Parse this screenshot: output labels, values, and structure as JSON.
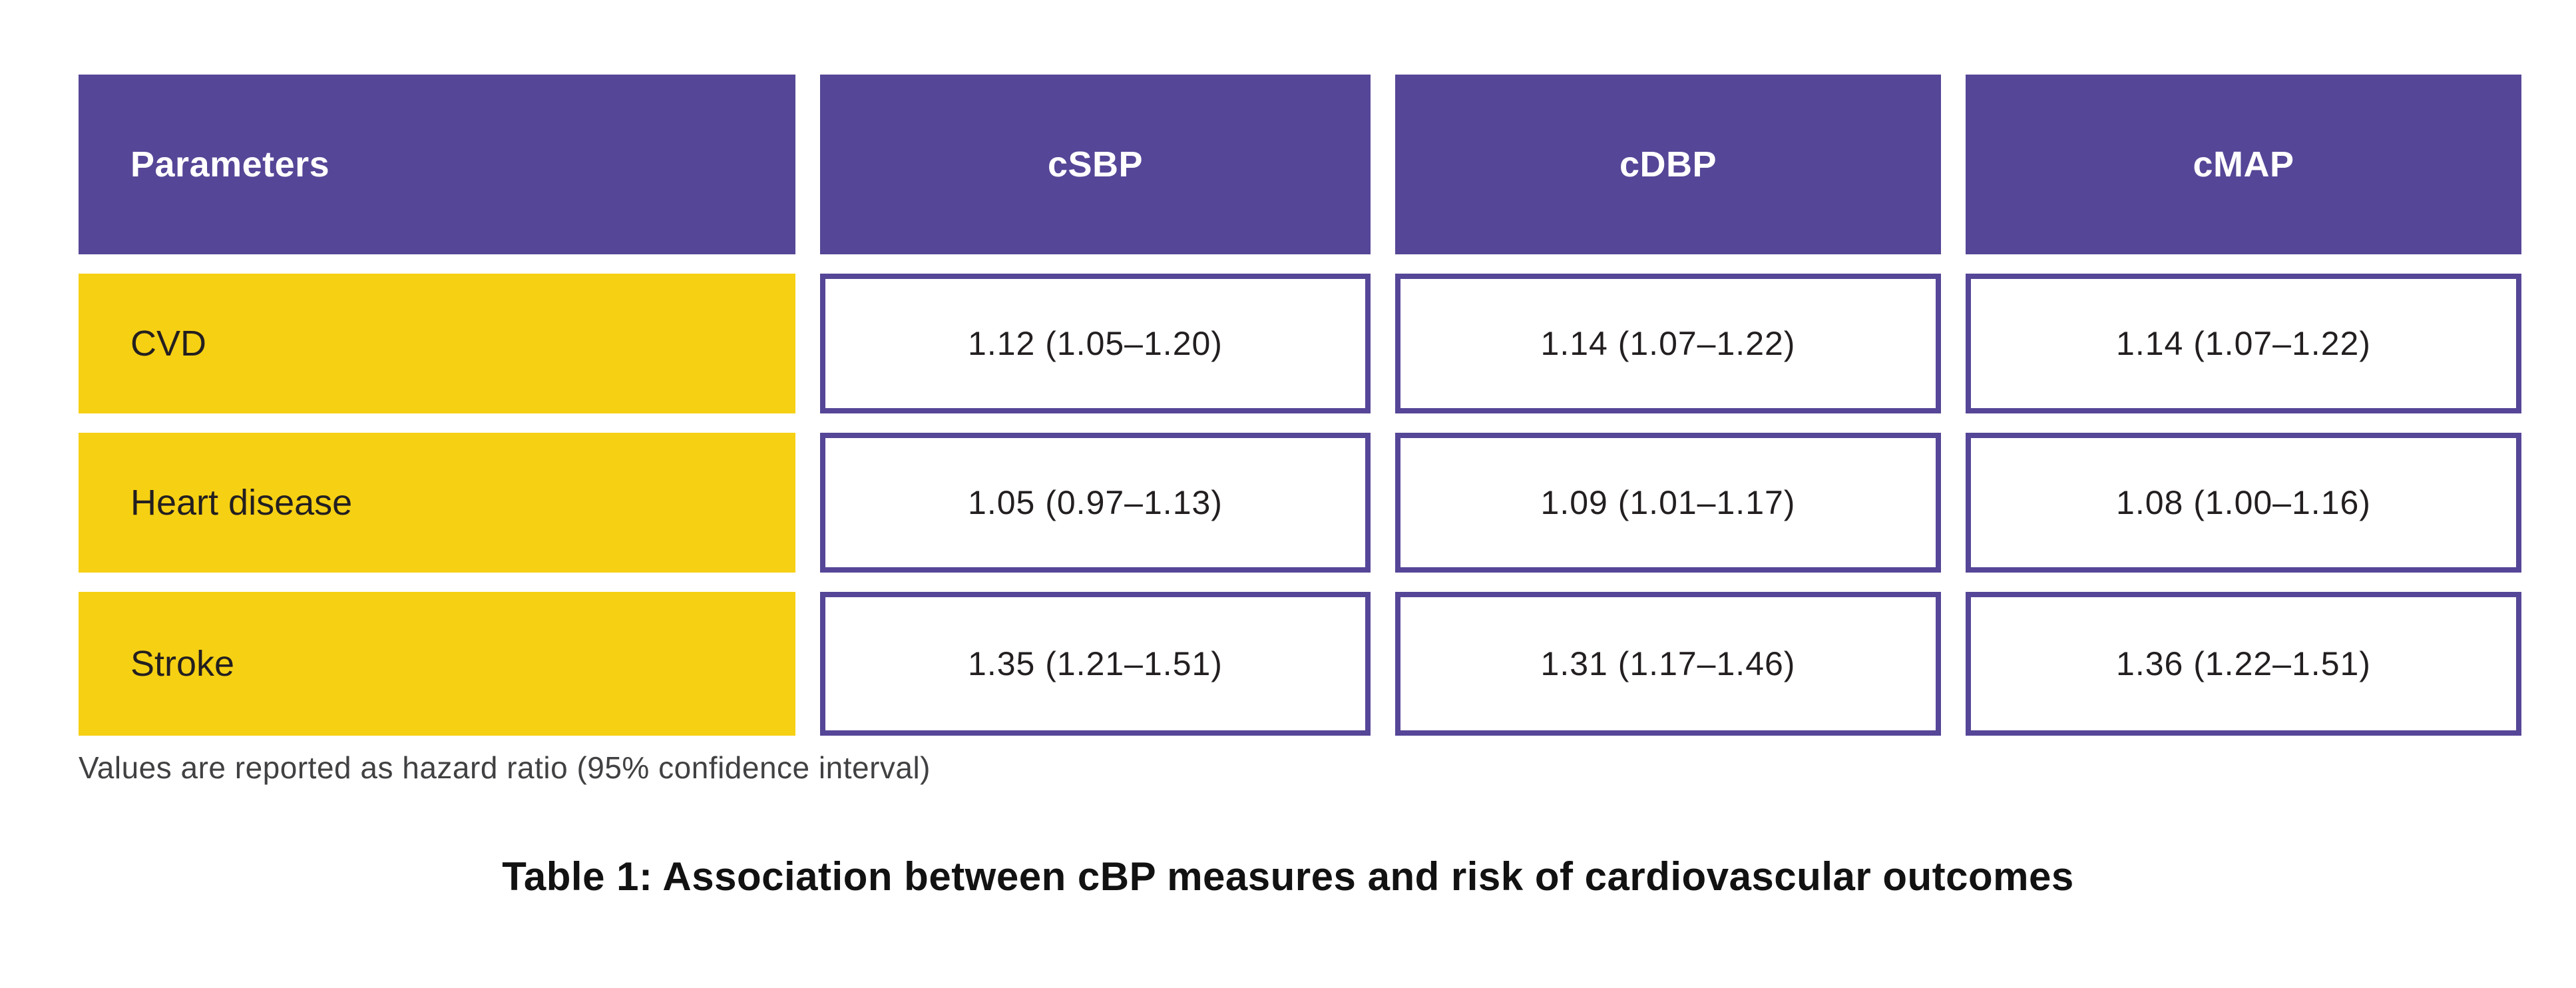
{
  "chart_data": {
    "type": "table",
    "title": "Table 1: Association between cBP measures and risk of cardiovascular outcomes",
    "columns": [
      "Parameters",
      "cSBP",
      "cDBP",
      "cMAP"
    ],
    "rows": [
      {
        "label": "CVD",
        "values": [
          "1.12 (1.05–1.20)",
          "1.14 (1.07–1.22)",
          "1.14 (1.07–1.22)"
        ]
      },
      {
        "label": "Heart disease",
        "values": [
          "1.05 (0.97–1.13)",
          "1.09 (1.01–1.17)",
          "1.08 (1.00–1.16)"
        ]
      },
      {
        "label": "Stroke",
        "values": [
          "1.35 (1.21–1.51)",
          "1.31 (1.17–1.46)",
          "1.36 (1.22–1.51)"
        ]
      }
    ],
    "footnote": "Values are reported as hazard ratio (95% confidence interval)",
    "values_unit": "hazard ratio (95% confidence interval)",
    "legend_position": "none",
    "grid": false
  },
  "colors": {
    "page_bg": "#ffffff",
    "header_bg": "#564697",
    "header_text": "#ffffff",
    "label_bg": "#f6d013",
    "label_text": "#231f20",
    "cell_bg": "#ffffff",
    "cell_border": "#564697",
    "cell_text": "#231f20",
    "footnote_text": "#414042",
    "caption_text": "#121212"
  }
}
